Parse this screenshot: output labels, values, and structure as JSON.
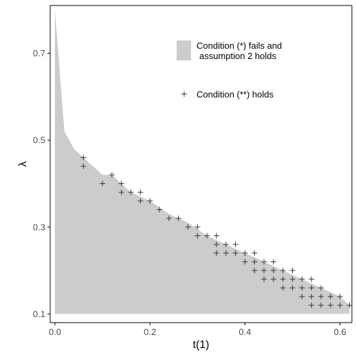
{
  "chart_data": {
    "type": "area",
    "xlabel": "t(1)",
    "ylabel": "λ",
    "xlim": [
      -0.01,
      0.625
    ],
    "ylim": [
      0.08,
      0.81
    ],
    "x_ticks": [
      0.0,
      0.2,
      0.4,
      0.6
    ],
    "x_tick_labels": [
      "0.0",
      "0.2",
      "0.4",
      "0.6"
    ],
    "y_ticks": [
      0.1,
      0.3,
      0.5,
      0.7
    ],
    "y_tick_labels": [
      "0.1",
      "0.3",
      "0.5",
      "0.7"
    ],
    "grid": false,
    "legend_position": "top-right",
    "colors": {
      "area": "#cccccc",
      "points": "#333333",
      "axes": "#000000",
      "ticks": "#4d4d4d"
    },
    "series": [
      {
        "name": "Condition (*) fails and assumption 2 holds",
        "type": "area",
        "baseline": 0.1,
        "x": [
          0.0,
          0.02,
          0.04,
          0.06,
          0.1,
          0.12,
          0.14,
          0.16,
          0.2,
          0.24,
          0.28,
          0.32,
          0.36,
          0.4,
          0.44,
          0.48,
          0.52,
          0.56,
          0.6,
          0.62
        ],
        "y": [
          0.8,
          0.52,
          0.48,
          0.46,
          0.42,
          0.42,
          0.4,
          0.38,
          0.36,
          0.33,
          0.31,
          0.28,
          0.26,
          0.24,
          0.22,
          0.2,
          0.18,
          0.16,
          0.14,
          0.12
        ]
      },
      {
        "name": "Condition (**) holds",
        "type": "scatter",
        "marker": "+",
        "points": [
          [
            0.06,
            0.46
          ],
          [
            0.06,
            0.44
          ],
          [
            0.1,
            0.4
          ],
          [
            0.12,
            0.42
          ],
          [
            0.14,
            0.4
          ],
          [
            0.14,
            0.38
          ],
          [
            0.16,
            0.38
          ],
          [
            0.18,
            0.38
          ],
          [
            0.18,
            0.36
          ],
          [
            0.2,
            0.36
          ],
          [
            0.22,
            0.34
          ],
          [
            0.24,
            0.32
          ],
          [
            0.26,
            0.32
          ],
          [
            0.28,
            0.3
          ],
          [
            0.3,
            0.3
          ],
          [
            0.3,
            0.28
          ],
          [
            0.32,
            0.28
          ],
          [
            0.34,
            0.28
          ],
          [
            0.34,
            0.26
          ],
          [
            0.34,
            0.24
          ],
          [
            0.36,
            0.26
          ],
          [
            0.36,
            0.24
          ],
          [
            0.38,
            0.26
          ],
          [
            0.38,
            0.24
          ],
          [
            0.4,
            0.24
          ],
          [
            0.4,
            0.22
          ],
          [
            0.42,
            0.24
          ],
          [
            0.42,
            0.22
          ],
          [
            0.42,
            0.2
          ],
          [
            0.44,
            0.22
          ],
          [
            0.44,
            0.2
          ],
          [
            0.44,
            0.18
          ],
          [
            0.46,
            0.22
          ],
          [
            0.46,
            0.2
          ],
          [
            0.46,
            0.18
          ],
          [
            0.48,
            0.2
          ],
          [
            0.48,
            0.18
          ],
          [
            0.48,
            0.16
          ],
          [
            0.5,
            0.2
          ],
          [
            0.5,
            0.18
          ],
          [
            0.5,
            0.16
          ],
          [
            0.52,
            0.18
          ],
          [
            0.52,
            0.16
          ],
          [
            0.52,
            0.14
          ],
          [
            0.54,
            0.18
          ],
          [
            0.54,
            0.16
          ],
          [
            0.54,
            0.14
          ],
          [
            0.54,
            0.12
          ],
          [
            0.56,
            0.16
          ],
          [
            0.56,
            0.14
          ],
          [
            0.56,
            0.12
          ],
          [
            0.58,
            0.14
          ],
          [
            0.58,
            0.12
          ],
          [
            0.6,
            0.14
          ],
          [
            0.6,
            0.12
          ],
          [
            0.62,
            0.12
          ]
        ]
      }
    ]
  }
}
